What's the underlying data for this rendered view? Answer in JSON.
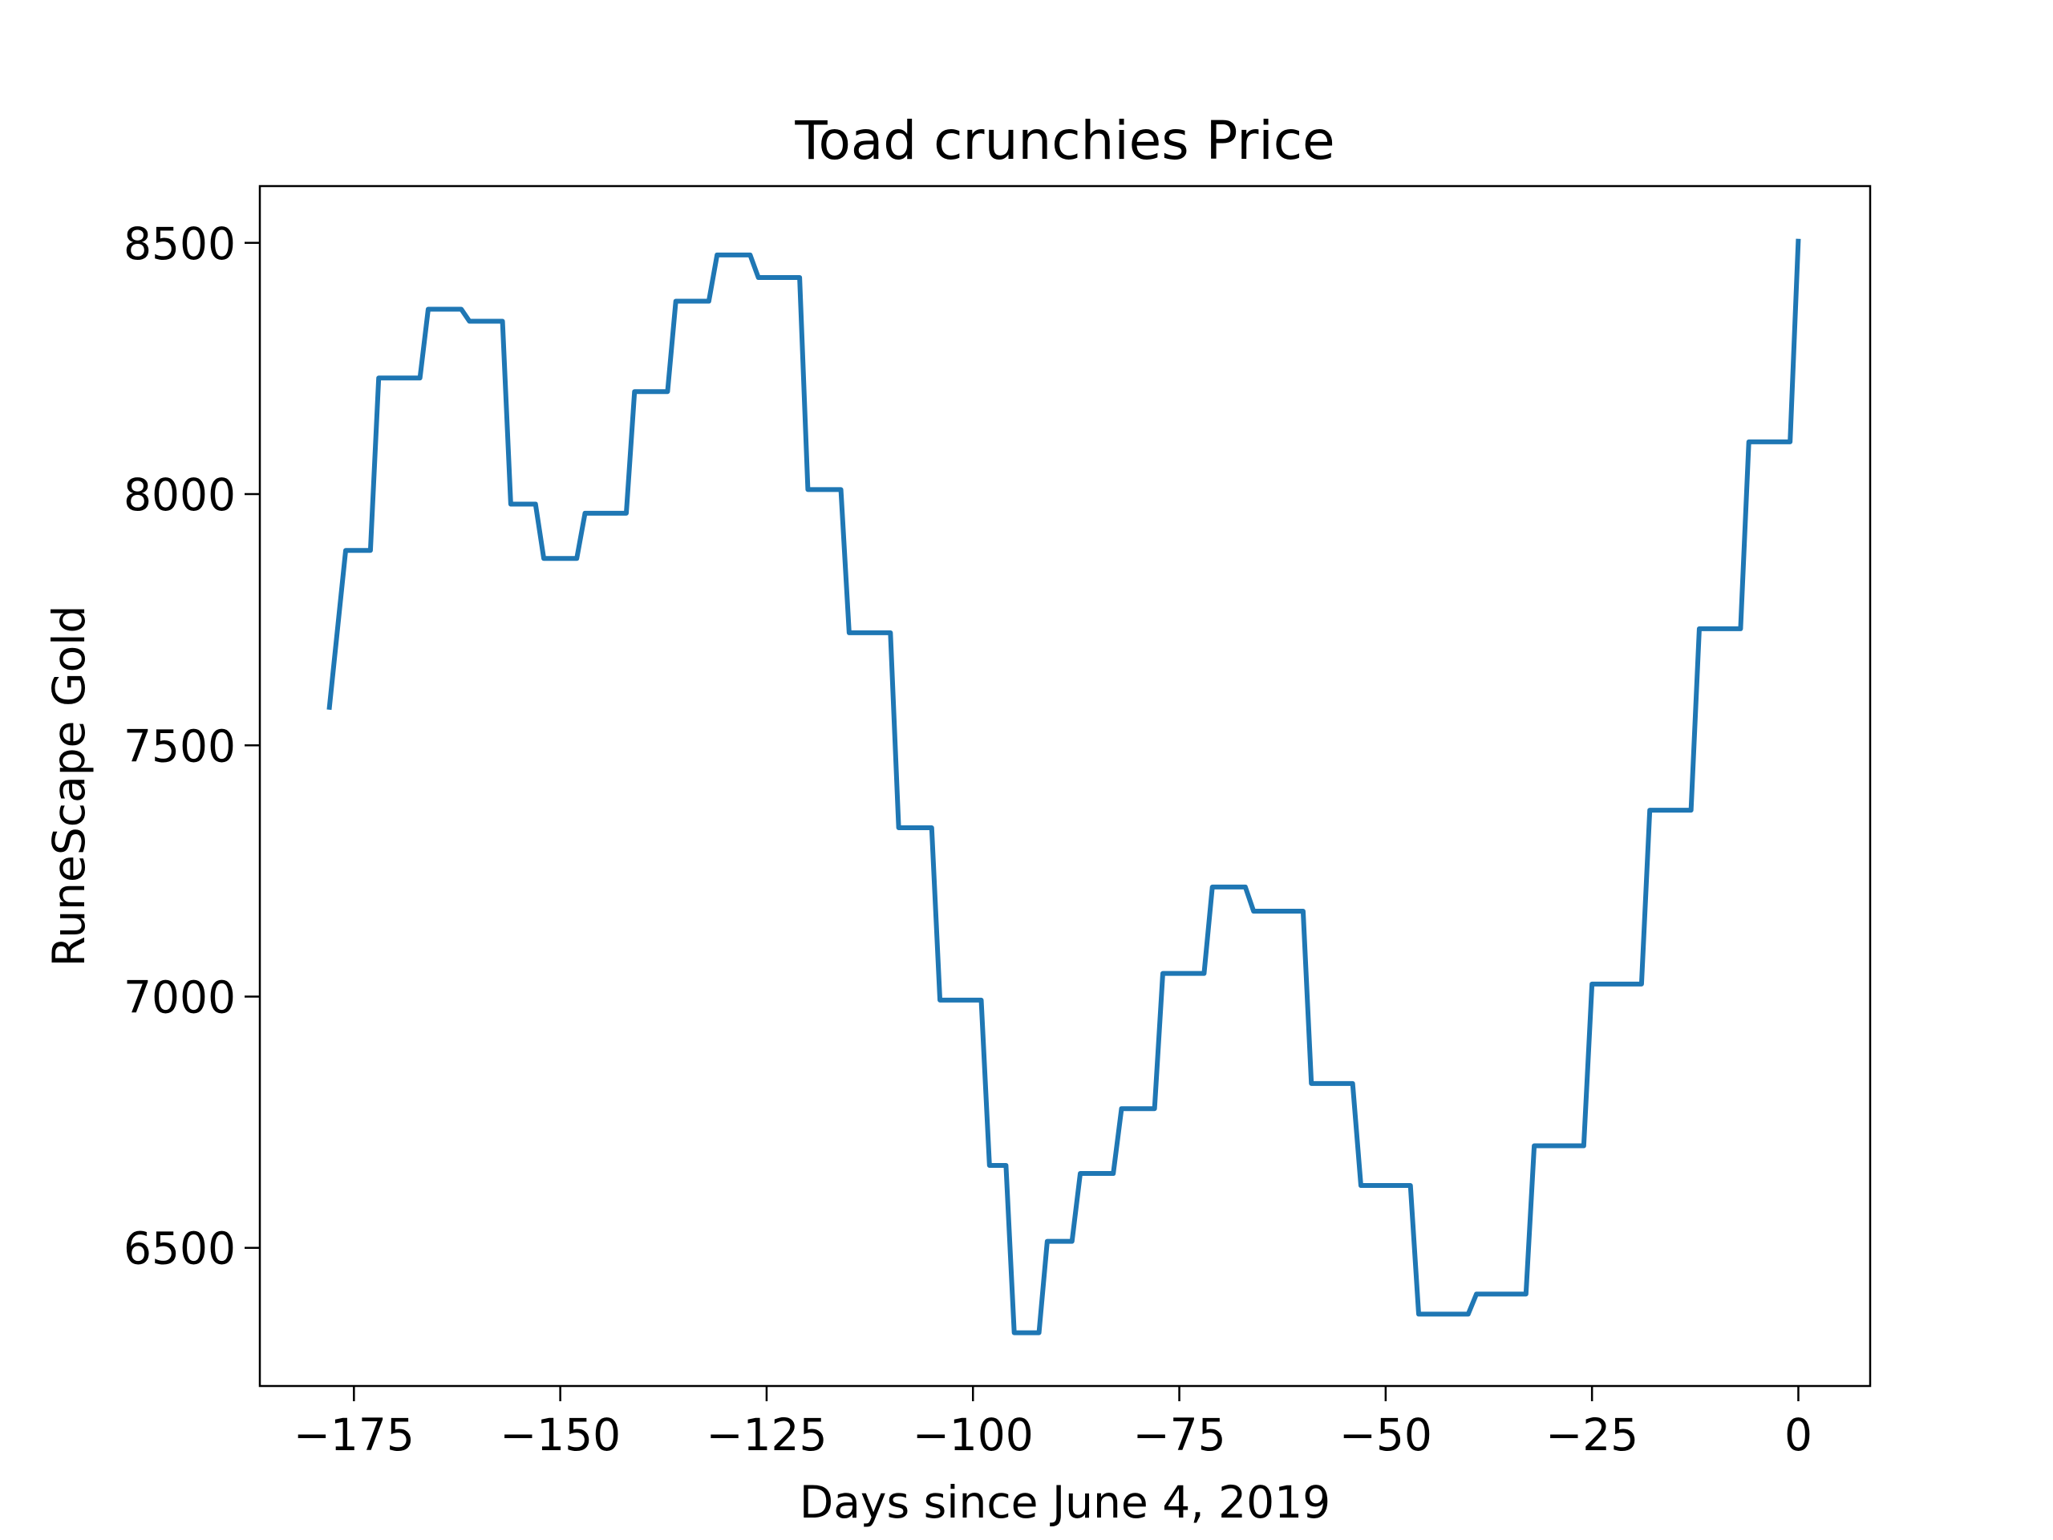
{
  "chart_data": {
    "type": "line",
    "title": "Toad crunchies Price",
    "xlabel": "Days since June 4, 2019",
    "ylabel": "RuneScape Gold",
    "series": [
      {
        "color": "#1f77b4",
        "x": [
          -178,
          -176,
          -173,
          -172,
          -167,
          -166,
          -162,
          -161,
          -157,
          -156,
          -153,
          -152,
          -148,
          -147,
          -142,
          -141,
          -137,
          -136,
          -132,
          -131,
          -127,
          -126,
          -121,
          -120,
          -116,
          -115,
          -110,
          -109,
          -105,
          -104,
          -99,
          -98,
          -96,
          -95,
          -92,
          -91,
          -88,
          -87,
          -83,
          -82,
          -78,
          -77,
          -72,
          -71,
          -67,
          -66,
          -60,
          -59,
          -54,
          -53,
          -47,
          -46,
          -40,
          -39,
          -33,
          -32,
          -26,
          -25,
          -19,
          -18,
          -13,
          -12,
          -7,
          -6,
          -1,
          0
        ],
        "values": [
          7571,
          7888,
          7888,
          8231,
          8231,
          8368,
          8368,
          8344,
          8344,
          7980,
          7980,
          7872,
          7872,
          7962,
          7962,
          8204,
          8204,
          8384,
          8384,
          8476,
          8476,
          8431,
          8431,
          8009,
          8009,
          7724,
          7724,
          7336,
          7336,
          6993,
          6993,
          6664,
          6664,
          6331,
          6331,
          6513,
          6513,
          6648,
          6648,
          6777,
          6777,
          7046,
          7046,
          7218,
          7218,
          7170,
          7170,
          6827,
          6827,
          6624,
          6624,
          6368,
          6368,
          6408,
          6408,
          6703,
          6703,
          7025,
          7025,
          7371,
          7371,
          7732,
          7732,
          8104,
          8104,
          8508
        ]
      }
    ],
    "xlim": [
      -186.4,
      8.7
    ],
    "ylim": [
      6225,
      8613
    ],
    "xticks": [
      {
        "value": -175,
        "label": "−175"
      },
      {
        "value": -150,
        "label": "−150"
      },
      {
        "value": -125,
        "label": "−125"
      },
      {
        "value": -100,
        "label": "−100"
      },
      {
        "value": -75,
        "label": "−75"
      },
      {
        "value": -50,
        "label": "−50"
      },
      {
        "value": -25,
        "label": "−25"
      },
      0
    ],
    "yticks": [
      6500,
      7000,
      7500,
      8000,
      8500
    ]
  }
}
